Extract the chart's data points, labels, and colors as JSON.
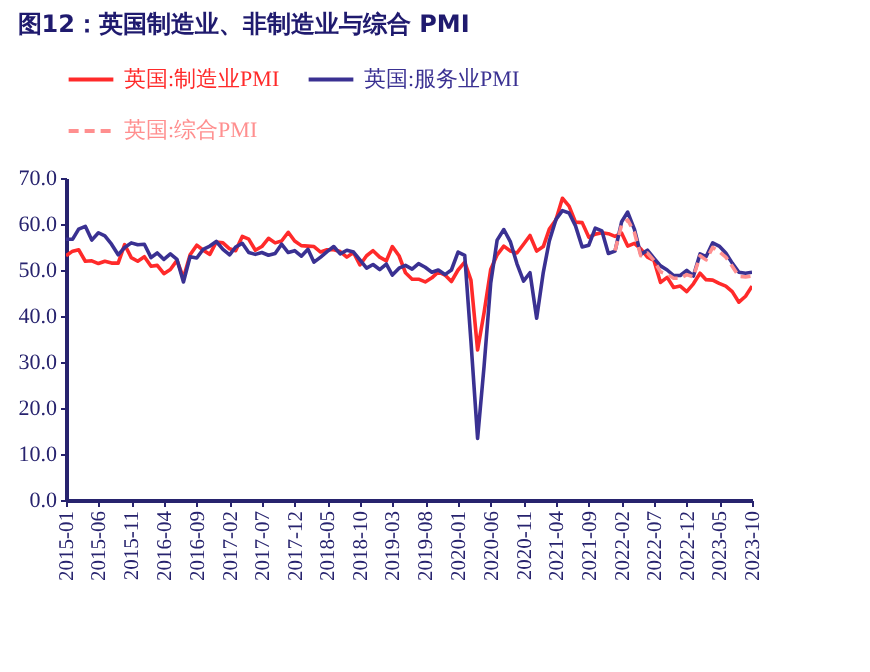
{
  "chart_data": {
    "type": "line",
    "title": "图12：英国制造业、非制造业与综合 PMI",
    "x": [
      "2015-01",
      "2015-02",
      "2015-03",
      "2015-04",
      "2015-05",
      "2015-06",
      "2015-07",
      "2015-08",
      "2015-09",
      "2015-10",
      "2015-11",
      "2015-12",
      "2016-01",
      "2016-02",
      "2016-03",
      "2016-04",
      "2016-05",
      "2016-06",
      "2016-07",
      "2016-08",
      "2016-09",
      "2016-10",
      "2016-11",
      "2016-12",
      "2017-01",
      "2017-02",
      "2017-03",
      "2017-04",
      "2017-05",
      "2017-06",
      "2017-07",
      "2017-08",
      "2017-09",
      "2017-10",
      "2017-11",
      "2017-12",
      "2018-01",
      "2018-02",
      "2018-03",
      "2018-04",
      "2018-05",
      "2018-06",
      "2018-07",
      "2018-08",
      "2018-09",
      "2018-10",
      "2018-11",
      "2018-12",
      "2019-01",
      "2019-02",
      "2019-03",
      "2019-04",
      "2019-05",
      "2019-06",
      "2019-07",
      "2019-08",
      "2019-09",
      "2019-10",
      "2019-11",
      "2019-12",
      "2020-01",
      "2020-02",
      "2020-03",
      "2020-04",
      "2020-05",
      "2020-06",
      "2020-07",
      "2020-08",
      "2020-09",
      "2020-10",
      "2020-11",
      "2020-12",
      "2021-01",
      "2021-02",
      "2021-03",
      "2021-04",
      "2021-05",
      "2021-06",
      "2021-07",
      "2021-08",
      "2021-09",
      "2021-10",
      "2021-11",
      "2021-12",
      "2022-01",
      "2022-02",
      "2022-03",
      "2022-04",
      "2022-05",
      "2022-06",
      "2022-07",
      "2022-08",
      "2022-09",
      "2022-10",
      "2022-11",
      "2022-12",
      "2023-01",
      "2023-02",
      "2023-03",
      "2023-04",
      "2023-05",
      "2023-06",
      "2023-07",
      "2023-08",
      "2023-09",
      "2023-10"
    ],
    "series": [
      {
        "name": "英国:制造业PMI",
        "color": "#ff2a2a",
        "line_style": "solid",
        "values": [
          53.1,
          54.1,
          54.4,
          51.9,
          52.0,
          51.4,
          51.9,
          51.5,
          51.5,
          55.5,
          52.7,
          51.9,
          52.9,
          50.8,
          51.0,
          49.2,
          50.1,
          52.1,
          48.3,
          53.3,
          55.4,
          54.3,
          53.4,
          56.1,
          55.9,
          54.6,
          54.2,
          57.3,
          56.7,
          54.3,
          55.1,
          56.9,
          55.9,
          56.3,
          58.2,
          56.3,
          55.3,
          55.2,
          55.1,
          53.9,
          54.4,
          54.4,
          54.0,
          52.8,
          53.8,
          51.1,
          53.1,
          54.2,
          52.8,
          52.0,
          55.1,
          53.1,
          49.4,
          48.0,
          48.0,
          47.4,
          48.3,
          49.6,
          48.9,
          47.5,
          50.0,
          51.7,
          47.8,
          32.6,
          40.7,
          50.1,
          53.3,
          55.2,
          54.1,
          53.7,
          55.6,
          57.5,
          54.1,
          55.1,
          58.9,
          60.9,
          65.6,
          63.9,
          60.4,
          60.3,
          57.1,
          57.8,
          58.1,
          57.9,
          57.3,
          58.0,
          55.2,
          55.8,
          54.6,
          52.8,
          52.1,
          47.3,
          48.4,
          46.2,
          46.5,
          45.3,
          47.0,
          49.3,
          47.9,
          47.8,
          47.1,
          46.5,
          45.3,
          43.0,
          44.3,
          46.5
        ]
      },
      {
        "name": "英国:服务业PMI",
        "color": "#3a3192",
        "line_style": "solid",
        "values": [
          56.7,
          56.7,
          58.9,
          59.5,
          56.5,
          58.1,
          57.4,
          55.6,
          53.3,
          54.9,
          55.9,
          55.5,
          55.6,
          52.7,
          53.7,
          52.3,
          53.5,
          52.3,
          47.4,
          52.9,
          52.6,
          54.5,
          55.2,
          56.2,
          54.5,
          53.3,
          55.0,
          55.8,
          53.8,
          53.4,
          53.8,
          53.2,
          53.6,
          55.6,
          53.8,
          54.2,
          53.0,
          54.5,
          51.7,
          52.8,
          54.0,
          55.1,
          53.5,
          54.3,
          53.9,
          52.2,
          50.4,
          51.2,
          50.1,
          51.3,
          48.9,
          50.4,
          51.0,
          50.2,
          51.4,
          50.6,
          49.5,
          50.0,
          49.0,
          50.0,
          53.9,
          53.2,
          34.5,
          13.4,
          29.0,
          47.1,
          56.5,
          58.8,
          56.1,
          51.4,
          47.6,
          49.4,
          39.5,
          49.5,
          56.3,
          61.0,
          62.9,
          62.4,
          59.6,
          55.0,
          55.4,
          59.1,
          58.5,
          53.6,
          54.1,
          60.5,
          62.6,
          58.9,
          53.4,
          54.3,
          52.6,
          50.9,
          50.0,
          48.8,
          48.8,
          49.9,
          48.7,
          53.5,
          52.9,
          55.9,
          55.2,
          53.7,
          51.5,
          49.5,
          49.3,
          49.5
        ]
      },
      {
        "name": "英国:综合PMI",
        "color": "#ff8f8f",
        "line_style": "dashed",
        "values": [
          null,
          null,
          null,
          null,
          null,
          null,
          null,
          null,
          null,
          null,
          null,
          null,
          null,
          null,
          null,
          null,
          null,
          null,
          null,
          null,
          null,
          null,
          null,
          null,
          null,
          null,
          null,
          null,
          null,
          null,
          null,
          null,
          null,
          null,
          null,
          null,
          null,
          null,
          null,
          null,
          null,
          null,
          null,
          null,
          null,
          null,
          null,
          null,
          null,
          null,
          null,
          null,
          null,
          null,
          null,
          null,
          null,
          null,
          null,
          null,
          null,
          null,
          null,
          null,
          null,
          null,
          null,
          null,
          null,
          null,
          null,
          null,
          null,
          null,
          null,
          null,
          null,
          null,
          null,
          null,
          null,
          null,
          null,
          null,
          54.2,
          59.9,
          60.9,
          58.2,
          53.1,
          53.7,
          52.1,
          49.6,
          49.1,
          48.2,
          48.2,
          49.0,
          48.5,
          53.1,
          52.2,
          54.9,
          54.0,
          52.8,
          50.8,
          48.6,
          48.5,
          48.7
        ]
      }
    ],
    "xlim": [
      "2015-01",
      "2023-10"
    ],
    "xticks": [
      "2015-01",
      "2015-06",
      "2015-11",
      "2016-04",
      "2016-09",
      "2017-02",
      "2017-07",
      "2017-12",
      "2018-05",
      "2018-10",
      "2019-03",
      "2019-08",
      "2020-01",
      "2020-06",
      "2020-11",
      "2021-04",
      "2021-09",
      "2022-02",
      "2022-07",
      "2022-12",
      "2023-05",
      "2023-10"
    ],
    "ylim": [
      0,
      70
    ],
    "yticks": [
      {
        "value": 0,
        "label": "0.0"
      },
      {
        "value": 10,
        "label": "10.0"
      },
      {
        "value": 20,
        "label": "20.0"
      },
      {
        "value": 30,
        "label": "30.0"
      },
      {
        "value": 40,
        "label": "40.0"
      },
      {
        "value": 50,
        "label": "50.0"
      },
      {
        "value": 60,
        "label": "60.0"
      },
      {
        "value": 70,
        "label": "70.0"
      }
    ],
    "grid": false,
    "legend": "top",
    "marker": "none"
  }
}
